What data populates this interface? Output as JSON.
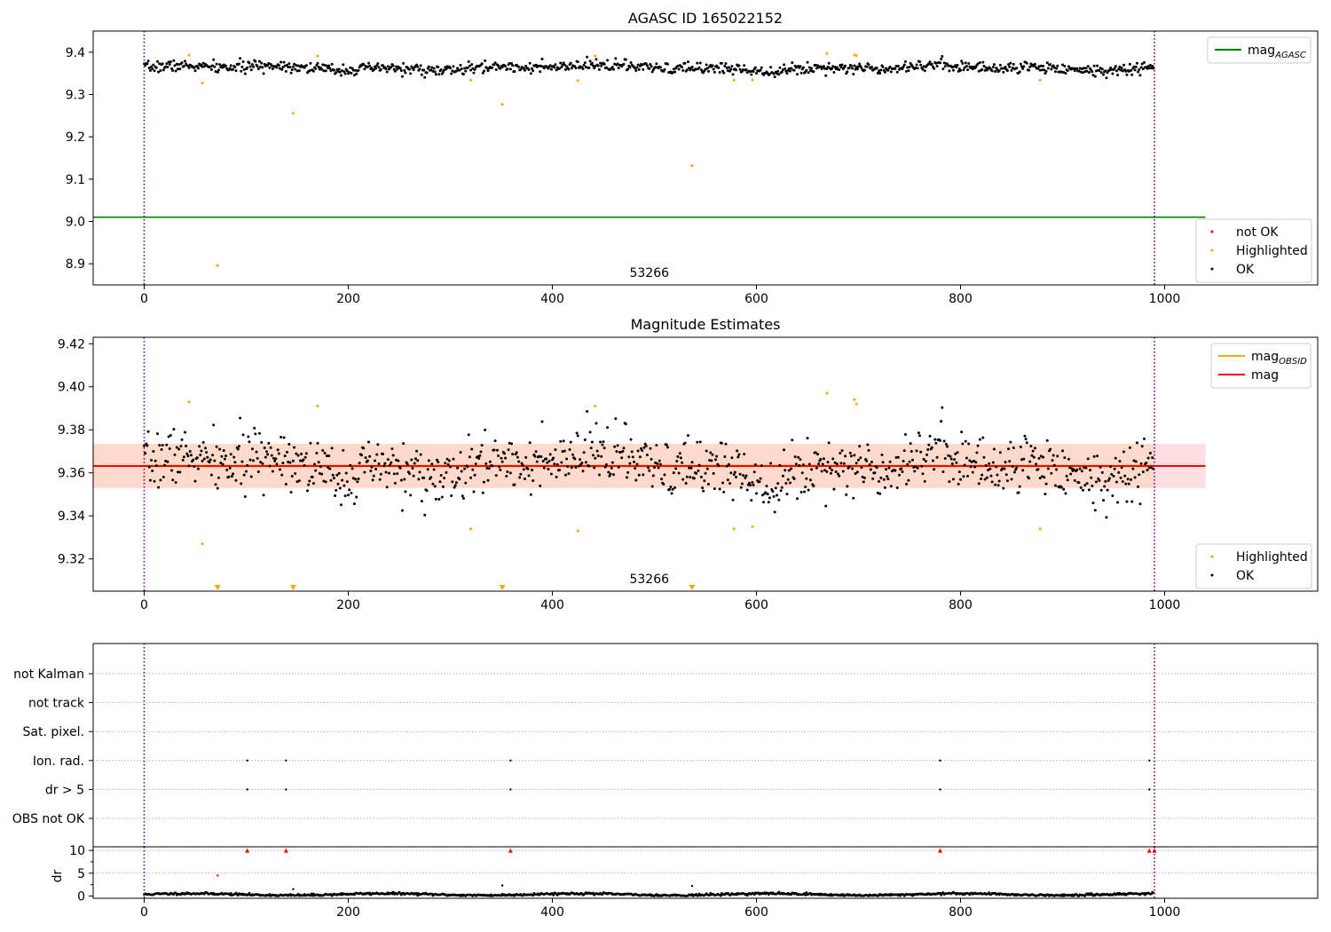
{
  "figure": {
    "panels": [
      {
        "id": "agasc",
        "title": "AGASC ID 165022152",
        "annotation": "53266",
        "xlim": [
          -50,
          1150
        ],
        "ylim": [
          8.85,
          9.45
        ],
        "xticks": [
          0,
          200,
          400,
          600,
          800,
          1000
        ],
        "yticks": [
          8.9,
          9.0,
          9.1,
          9.2,
          9.3,
          9.4
        ],
        "vlines_x": [
          0,
          990
        ],
        "hline": {
          "name": "mag_AGASC",
          "y": 9.01,
          "x_range": [
            -50,
            1040
          ],
          "color": "#008000"
        },
        "legend_top": [
          {
            "label": "mag",
            "sub": "AGASC",
            "color": "#008000",
            "kind": "line"
          }
        ],
        "legend_bottom": [
          {
            "label": "not OK",
            "color": "#ff0000",
            "kind": "dot"
          },
          {
            "label": "Highlighted",
            "color": "#ffa500",
            "kind": "dot"
          },
          {
            "label": "OK",
            "color": "#000000",
            "kind": "dot"
          }
        ]
      },
      {
        "id": "estimates",
        "title": "Magnitude Estimates",
        "annotation": "53266",
        "xlim": [
          -50,
          1150
        ],
        "ylim": [
          9.305,
          9.423
        ],
        "xticks": [
          0,
          200,
          400,
          600,
          800,
          1000
        ],
        "yticks": [
          9.32,
          9.34,
          9.36,
          9.38,
          9.4,
          9.42
        ],
        "vlines_x": [
          0,
          990
        ],
        "mag_line": {
          "name": "mag",
          "y": 9.3632,
          "x_range": [
            -50,
            1040
          ],
          "color": "#ff0000"
        },
        "band_outer": {
          "y_range": [
            9.353,
            9.3735
          ],
          "x_range": [
            -50,
            1040
          ],
          "color": "#ffb6c1"
        },
        "band_inner": {
          "y_range": [
            9.353,
            9.3735
          ],
          "x_range": [
            -50,
            990
          ],
          "color": "#ffd7bf"
        },
        "obsid_line": {
          "name": "mag_OBSID",
          "y": 9.3632,
          "x_range": [
            0,
            990
          ],
          "color": "#ffa500"
        },
        "legend_top": [
          {
            "label": "mag",
            "sub": "OBSID",
            "color": "#ffa500",
            "kind": "line"
          },
          {
            "label": "mag",
            "sub": "",
            "color": "#ff0000",
            "kind": "line"
          }
        ],
        "legend_bottom": [
          {
            "label": "Highlighted",
            "color": "#ffa500",
            "kind": "dot"
          },
          {
            "label": "OK",
            "color": "#000000",
            "kind": "dot"
          }
        ]
      },
      {
        "id": "flags",
        "category_labels": [
          "not Kalman",
          "not track",
          "Sat. pixel.",
          "Ion. rad.",
          "dr > 5",
          "OBS not OK"
        ],
        "flag_points": {
          "Ion. rad.": [
            101,
            139,
            359,
            780,
            985
          ],
          "dr > 5": [
            101,
            139,
            359,
            780,
            985
          ]
        }
      },
      {
        "id": "dr",
        "ylabel": "dr",
        "xlim": [
          -50,
          1150
        ],
        "ylim": [
          -0.5,
          10.8
        ],
        "xticks": [
          0,
          200,
          400,
          600,
          800,
          1000
        ],
        "yticks": [
          0,
          5,
          10
        ],
        "vlines_x": [
          0,
          990
        ],
        "clipped_markers_x": [
          101,
          139,
          359,
          780,
          985,
          990
        ],
        "clipped_marker_color": "#ff0000"
      }
    ]
  },
  "chart_data": [
    {
      "type": "scatter",
      "title": "AGASC ID 165022152",
      "xlabel": "",
      "ylabel": "",
      "xlim": [
        -50,
        1150
      ],
      "ylim": [
        8.85,
        9.45
      ],
      "annotation": "53266",
      "lines": [
        {
          "name": "mag_AGASC",
          "y": 9.01,
          "color": "#008000"
        }
      ],
      "series": [
        {
          "name": "OK",
          "color": "#000000",
          "x_range": [
            0,
            990
          ],
          "n": 990,
          "y_center": 9.363,
          "y_spread": 0.012
        },
        {
          "name": "Highlighted",
          "color": "#ffa500",
          "x": [
            44,
            57,
            72,
            146,
            170,
            320,
            351,
            425,
            442,
            537,
            578,
            596,
            669,
            696,
            698,
            878
          ],
          "y": [
            9.393,
            9.327,
            8.896,
            9.256,
            9.391,
            9.334,
            9.277,
            9.333,
            9.391,
            9.132,
            9.334,
            9.335,
            9.397,
            9.394,
            9.392,
            9.334
          ]
        },
        {
          "name": "not OK",
          "color": "#ff0000",
          "x": [],
          "y": []
        }
      ]
    },
    {
      "type": "scatter",
      "title": "Magnitude Estimates",
      "xlabel": "",
      "ylabel": "",
      "xlim": [
        -50,
        1150
      ],
      "ylim": [
        9.305,
        9.423
      ],
      "annotation": "53266",
      "lines": [
        {
          "name": "mag",
          "y": 9.3632,
          "color": "#ff0000"
        },
        {
          "name": "mag_OBSID",
          "y": 9.3632,
          "color": "#ffa500"
        }
      ],
      "band": {
        "y_range": [
          9.353,
          9.3735
        ]
      },
      "series": [
        {
          "name": "OK",
          "color": "#000000",
          "x_range": [
            0,
            990
          ],
          "n": 990,
          "y_center": 9.363,
          "y_spread": 0.012
        },
        {
          "name": "Highlighted",
          "color": "#ffa500",
          "x": [
            44,
            57,
            170,
            320,
            425,
            442,
            578,
            596,
            669,
            696,
            698,
            878
          ],
          "y": [
            9.393,
            9.327,
            9.391,
            9.334,
            9.333,
            9.391,
            9.334,
            9.335,
            9.397,
            9.394,
            9.392,
            9.334
          ],
          "below_axis_x": [
            72,
            146,
            351,
            537
          ]
        }
      ]
    },
    {
      "type": "scatter",
      "title": "",
      "categories": [
        "not Kalman",
        "not track",
        "Sat. pixel.",
        "Ion. rad.",
        "dr > 5",
        "OBS not OK"
      ],
      "series": [
        {
          "name": "Ion. rad.",
          "x": [
            101,
            139,
            359,
            780,
            985
          ]
        },
        {
          "name": "dr > 5",
          "x": [
            101,
            139,
            359,
            780,
            985
          ]
        }
      ]
    },
    {
      "type": "scatter",
      "title": "",
      "ylabel": "dr",
      "xlim": [
        -50,
        1150
      ],
      "ylim": [
        -0.5,
        10.8
      ],
      "series": [
        {
          "name": "dr",
          "color": "#000000",
          "x_range": [
            0,
            990
          ],
          "n": 990,
          "y_center": 0.35,
          "y_spread": 0.3,
          "extra_x": [
            72,
            146,
            351,
            537
          ],
          "extra_y": [
            4.5,
            1.5,
            2.3,
            2.2
          ]
        },
        {
          "name": "dr clipped",
          "color": "#ff0000",
          "x": [
            101,
            139,
            359,
            780,
            985,
            990
          ],
          "y": [
            10,
            10,
            10,
            10,
            10,
            10
          ]
        }
      ]
    }
  ]
}
